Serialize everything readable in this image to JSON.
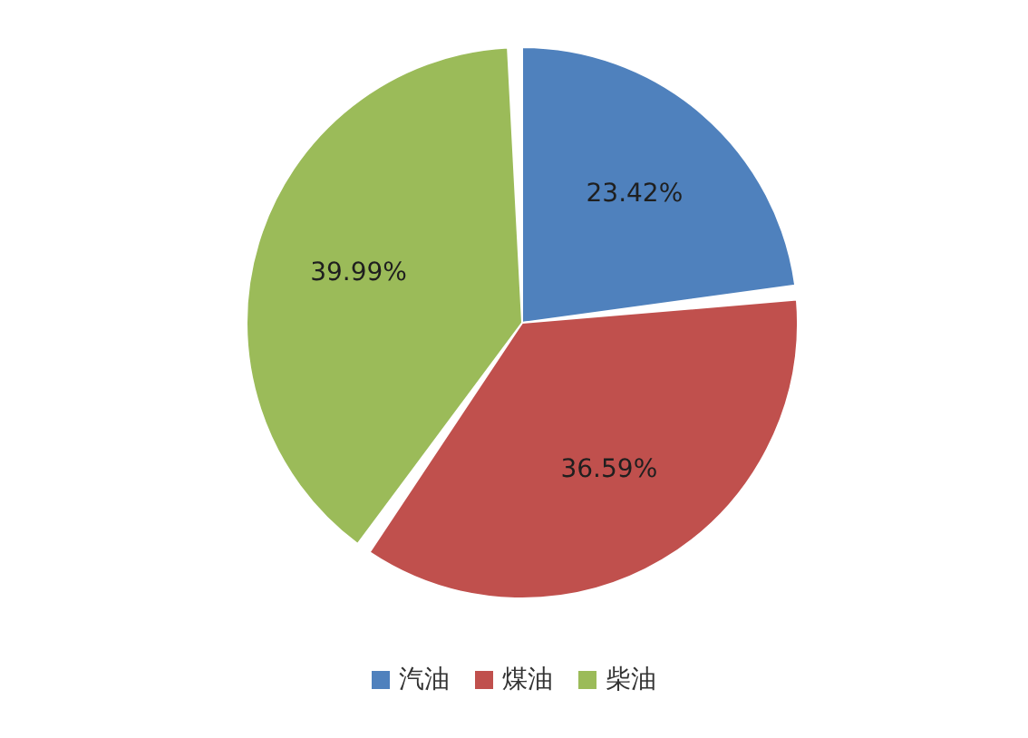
{
  "chart_data": {
    "type": "pie",
    "categories": [
      "汽油",
      "煤油",
      "柴油"
    ],
    "values": [
      23.42,
      36.59,
      39.99
    ],
    "colors": [
      "#4f81bd",
      "#c0504d",
      "#9bbb59"
    ],
    "value_labels": [
      "23.42%",
      "36.59%",
      "39.99%"
    ],
    "legend": "bottom"
  }
}
